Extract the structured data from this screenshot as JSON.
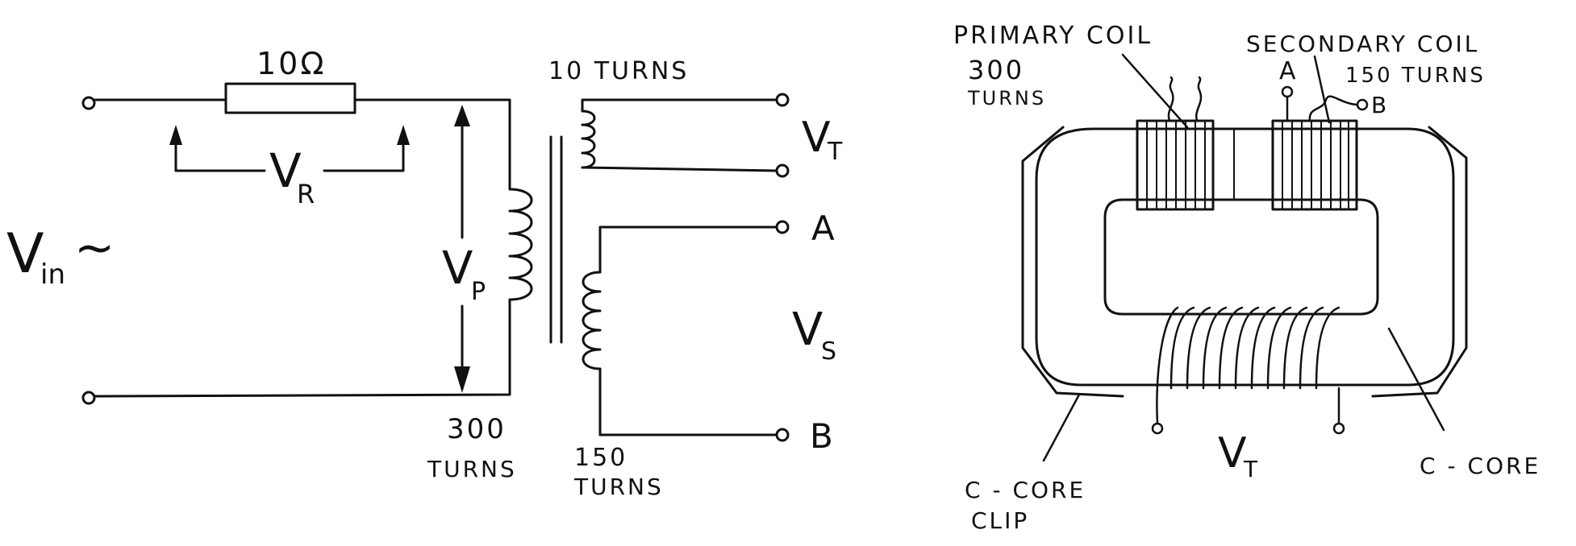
{
  "circuit": {
    "resistor_label": "10Ω",
    "top_coil_turns": "10 TURNS",
    "vt_main": "V",
    "vt_sub": "T",
    "terminal_a": "A",
    "terminal_b": "B",
    "vr_main": "V",
    "vr_sub": "R",
    "vin_main": "V",
    "vin_sub": "in",
    "vin_suffix": "~",
    "vp_main": "V",
    "vp_sub": "P",
    "vs_main": "V",
    "vs_sub": "S",
    "primary_turns_num": "300",
    "primary_turns_word": "TURNS",
    "secondary_turns_num": "150",
    "secondary_turns_word": "TURNS"
  },
  "core": {
    "primary_coil_label": "PRIMARY COIL",
    "primary_turns_num": "300",
    "primary_turns_word": "TURNS",
    "secondary_coil_label": "SECONDARY COIL",
    "secondary_turns": "150 TURNS",
    "terminal_a": "A",
    "terminal_b": "B",
    "vt_main": "V",
    "vt_sub": "T",
    "ccore_label": "C - CORE",
    "clip_line1": "C - CORE",
    "clip_line2": "CLIP"
  }
}
